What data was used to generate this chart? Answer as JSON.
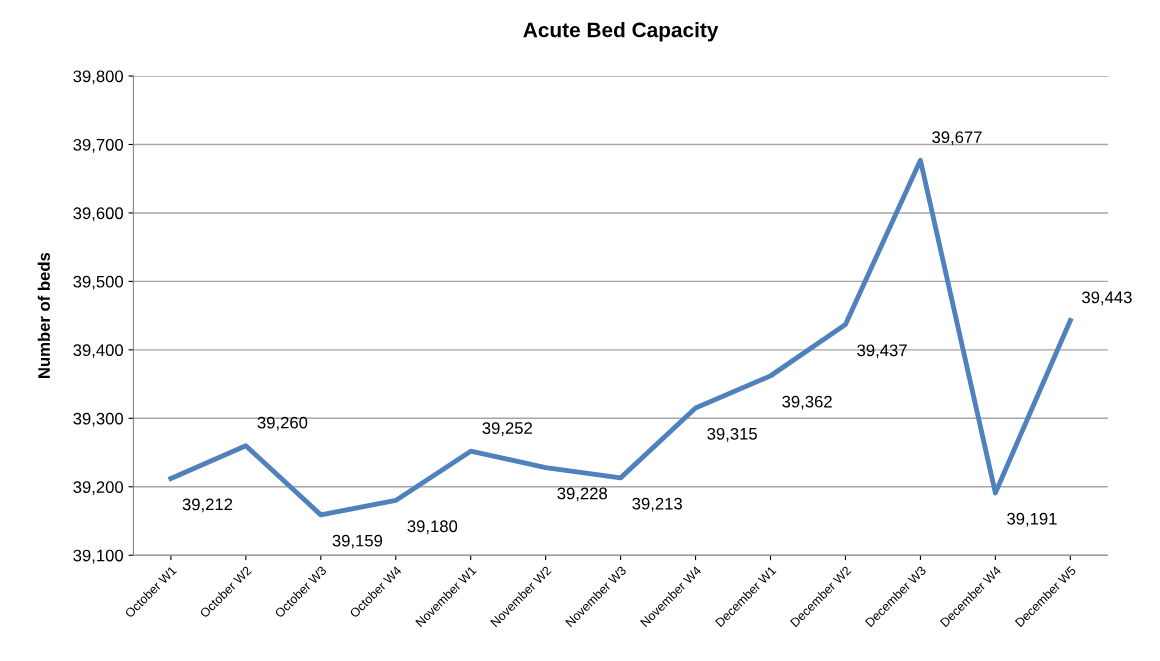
{
  "chart_data": {
    "type": "line",
    "title": "Acute Bed Capacity",
    "ylabel": "Number of beds",
    "categories": [
      "October W1",
      "October W2",
      "October W3",
      "October W4",
      "November W1",
      "November W2",
      "November W3",
      "November W4",
      "December W1",
      "December W2",
      "December W3",
      "December W4",
      "December W5"
    ],
    "series": [
      {
        "color": "#4f81bd",
        "values": [
          39212,
          39260,
          39159,
          39180,
          39252,
          39228,
          39213,
          39315,
          39362,
          39437,
          39677,
          39191,
          39443
        ],
        "value_labels": [
          "39,212",
          "39,260",
          "39,159",
          "39,180",
          "39,252",
          "39,228",
          "39,213",
          "39,315",
          "39,362",
          "39,437",
          "39,677",
          "39,191",
          "39,443"
        ]
      }
    ],
    "ylim": [
      39100,
      39800
    ],
    "yticks": [
      {
        "value": 39100,
        "label": "39,100"
      },
      {
        "value": 39200,
        "label": "39,200"
      },
      {
        "value": 39300,
        "label": "39,300"
      },
      {
        "value": 39400,
        "label": "39,400"
      },
      {
        "value": 39500,
        "label": "39,500"
      },
      {
        "value": 39600,
        "label": "39,600"
      },
      {
        "value": 39700,
        "label": "39,700"
      },
      {
        "value": 39800,
        "label": "39,800"
      }
    ],
    "grid": "y",
    "legend": false,
    "marker": "none",
    "line_style": "solid"
  }
}
